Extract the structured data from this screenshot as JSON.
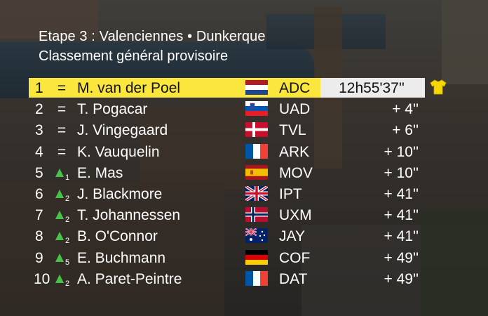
{
  "header": {
    "title": "Etape 3 : Valenciennes • Dunkerque",
    "subtitle": "Classement général provisoire"
  },
  "colors": {
    "leader_bar": "#fbe63d",
    "time_box": "#ececec",
    "up_arrow": "#49c24a"
  },
  "leader_icon": "yellow-jersey-icon",
  "rows": [
    {
      "rank": "1",
      "move": "=",
      "gain": "",
      "name": "M. van der Poel",
      "flag": "netherlands-flag",
      "team": "ADC",
      "time": "12h55'37''"
    },
    {
      "rank": "2",
      "move": "=",
      "gain": "",
      "name": "T. Pogacar",
      "flag": "slovenia-flag",
      "team": "UAD",
      "time": "+ 4''"
    },
    {
      "rank": "3",
      "move": "=",
      "gain": "",
      "name": "J. Vingegaard",
      "flag": "denmark-flag",
      "team": "TVL",
      "time": "+ 6''"
    },
    {
      "rank": "4",
      "move": "=",
      "gain": "",
      "name": "K. Vauquelin",
      "flag": "france-flag",
      "team": "ARK",
      "time": "+ 10''"
    },
    {
      "rank": "5",
      "move": "up",
      "gain": "1",
      "name": "E. Mas",
      "flag": "spain-flag",
      "team": "MOV",
      "time": "+ 10''"
    },
    {
      "rank": "6",
      "move": "up",
      "gain": "2",
      "name": "J. Blackmore",
      "flag": "uk-flag",
      "team": "IPT",
      "time": "+ 41''"
    },
    {
      "rank": "7",
      "move": "up",
      "gain": "2",
      "name": "T. Johannessen",
      "flag": "norway-flag",
      "team": "UXM",
      "time": "+ 41''"
    },
    {
      "rank": "8",
      "move": "up",
      "gain": "2",
      "name": "B. O'Connor",
      "flag": "australia-flag",
      "team": "JAY",
      "time": "+ 41''"
    },
    {
      "rank": "9",
      "move": "up",
      "gain": "5",
      "name": "E. Buchmann",
      "flag": "germany-flag",
      "team": "COF",
      "time": "+ 49''"
    },
    {
      "rank": "10",
      "move": "up",
      "gain": "2",
      "name": "A. Paret-Peintre",
      "flag": "france-flag",
      "team": "DAT",
      "time": "+ 49''"
    }
  ]
}
